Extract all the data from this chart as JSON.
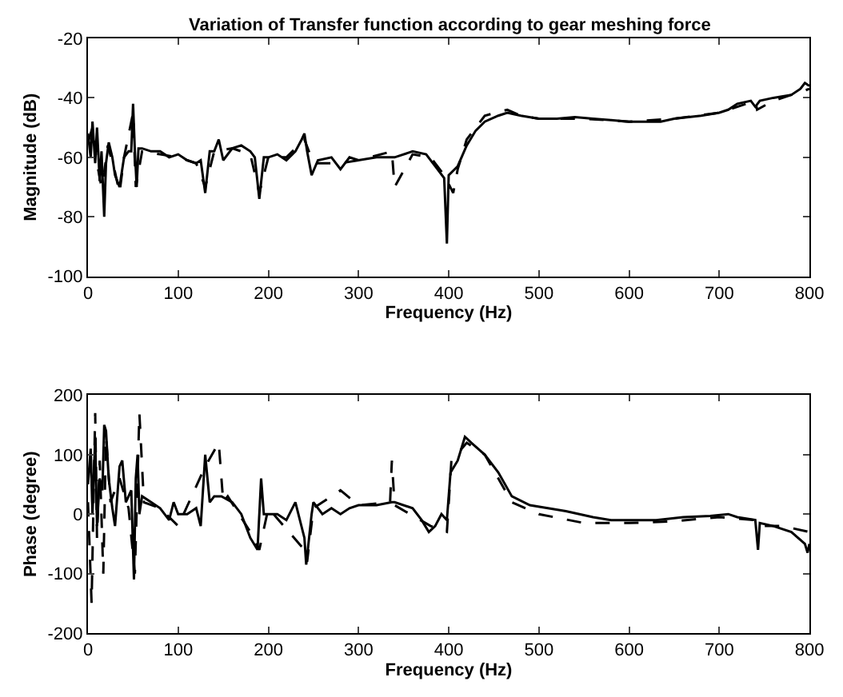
{
  "chart_data": [
    {
      "type": "line",
      "title": "Variation of Transfer function according to gear meshing force",
      "xlabel": "Frequency (Hz)",
      "ylabel": "Magnitude (dB)",
      "xlim": [
        0,
        800
      ],
      "xticks": [
        0,
        100,
        200,
        300,
        400,
        500,
        600,
        700,
        800
      ],
      "ylim": [
        -100,
        -20
      ],
      "yticks": [
        -100,
        -80,
        -60,
        -40,
        -20
      ],
      "series": [
        {
          "color": "#000000",
          "line_style": "solid",
          "x": [
            0,
            3,
            5,
            8,
            10,
            13,
            15,
            18,
            20,
            23,
            27,
            30,
            35,
            40,
            45,
            48,
            50,
            52,
            54,
            56,
            60,
            70,
            80,
            90,
            100,
            110,
            120,
            125,
            130,
            135,
            140,
            145,
            150,
            160,
            170,
            180,
            185,
            190,
            195,
            200,
            210,
            220,
            230,
            237,
            240,
            243,
            248,
            255,
            270,
            280,
            290,
            300,
            320,
            340,
            360,
            375,
            385,
            395,
            398,
            400,
            410,
            420,
            430,
            440,
            455,
            465,
            480,
            500,
            520,
            540,
            560,
            580,
            600,
            620,
            635,
            650,
            680,
            700,
            710,
            720,
            735,
            740,
            745,
            760,
            780,
            790,
            795,
            800
          ],
          "values": [
            -52,
            -60,
            -48,
            -62,
            -50,
            -68,
            -58,
            -80,
            -62,
            -55,
            -60,
            -66,
            -70,
            -60,
            -58,
            -58,
            -42,
            -58,
            -70,
            -57,
            -57,
            -58,
            -58,
            -60,
            -59,
            -61,
            -62,
            -61,
            -72,
            -58,
            -58,
            -54,
            -61,
            -57,
            -56,
            -58,
            -60,
            -74,
            -60,
            -60,
            -59,
            -61,
            -58,
            -54,
            -52,
            -58,
            -66,
            -61,
            -60,
            -64,
            -60,
            -61,
            -60,
            -60,
            -58,
            -59,
            -63,
            -67,
            -89,
            -66,
            -63,
            -56,
            -51,
            -48,
            -46,
            -45,
            -46,
            -47,
            -47,
            -46.5,
            -47,
            -47.5,
            -48,
            -48,
            -48,
            -47,
            -46,
            -45,
            -44,
            -42,
            -41,
            -43,
            -41,
            -40,
            -39,
            -37,
            -35,
            -36
          ]
        },
        {
          "color": "#000000",
          "line_style": "dashed",
          "x": [
            0,
            5,
            10,
            15,
            18,
            22,
            30,
            35,
            40,
            50,
            53,
            60,
            80,
            100,
            120,
            130,
            140,
            160,
            180,
            190,
            200,
            220,
            240,
            250,
            280,
            300,
            337,
            340,
            360,
            380,
            395,
            405,
            410,
            420,
            440,
            465,
            480,
            500,
            550,
            600,
            650,
            700,
            740,
            742,
            760,
            790,
            800
          ],
          "values": [
            -55,
            -50,
            -62,
            -70,
            -65,
            -56,
            -65,
            -72,
            -60,
            -45,
            -70,
            -58,
            -59,
            -60,
            -62,
            -70,
            -58,
            -57,
            -59,
            -72,
            -60,
            -60,
            -54,
            -62,
            -62,
            -61,
            -58,
            -70,
            -59,
            -60,
            -66,
            -72,
            -64,
            -54,
            -46,
            -44,
            -46,
            -47,
            -47,
            -48,
            -47,
            -45,
            -41,
            -44,
            -41,
            -38,
            -37
          ]
        }
      ]
    },
    {
      "type": "line",
      "xlabel": "Frequency (Hz)",
      "ylabel": "Phase (degree)",
      "xlim": [
        0,
        800
      ],
      "xticks": [
        0,
        100,
        200,
        300,
        400,
        500,
        600,
        700,
        800
      ],
      "ylim": [
        -200,
        200
      ],
      "yticks": [
        -200,
        -100,
        0,
        100,
        200
      ],
      "series": [
        {
          "color": "#000000",
          "line_style": "solid",
          "x": [
            0,
            3,
            5,
            8,
            10,
            13,
            16,
            18,
            20,
            23,
            27,
            30,
            35,
            38,
            42,
            48,
            51,
            53,
            55,
            57,
            60,
            70,
            80,
            90,
            95,
            100,
            110,
            120,
            125,
            130,
            135,
            140,
            148,
            160,
            170,
            180,
            188,
            192,
            195,
            210,
            220,
            230,
            240,
            242,
            248,
            250,
            260,
            270,
            280,
            290,
            300,
            320,
            337,
            340,
            360,
            370,
            378,
            385,
            392,
            398,
            402,
            410,
            418,
            425,
            440,
            455,
            470,
            490,
            510,
            530,
            560,
            580,
            600,
            630,
            660,
            690,
            710,
            720,
            740,
            743,
            745,
            760,
            780,
            795,
            798,
            800
          ],
          "values": [
            50,
            110,
            0,
            130,
            -20,
            60,
            40,
            150,
            140,
            60,
            10,
            -20,
            80,
            90,
            20,
            40,
            -110,
            60,
            100,
            0,
            30,
            20,
            10,
            -10,
            20,
            0,
            0,
            10,
            -20,
            100,
            20,
            30,
            30,
            20,
            0,
            -40,
            -60,
            60,
            0,
            0,
            -10,
            20,
            -40,
            -85,
            0,
            20,
            0,
            10,
            0,
            10,
            15,
            15,
            20,
            20,
            10,
            -10,
            -30,
            -20,
            0,
            -10,
            70,
            90,
            130,
            120,
            100,
            70,
            30,
            15,
            10,
            5,
            -5,
            -10,
            -10,
            -10,
            -5,
            -3,
            0,
            -5,
            -10,
            -60,
            -15,
            -20,
            -30,
            -50,
            -65,
            -50
          ]
        },
        {
          "color": "#000000",
          "line_style": "dashed",
          "x": [
            0,
            4,
            8,
            10,
            13,
            17,
            20,
            25,
            35,
            45,
            52,
            57,
            62,
            80,
            100,
            130,
            145,
            150,
            155,
            180,
            190,
            200,
            240,
            243,
            250,
            280,
            300,
            335,
            337,
            340,
            380,
            398,
            403,
            420,
            440,
            470,
            500,
            550,
            600,
            650,
            700,
            740,
            745,
            770,
            800
          ],
          "values": [
            20,
            -150,
            170,
            -40,
            90,
            -100,
            130,
            20,
            60,
            10,
            -100,
            170,
            20,
            10,
            -20,
            80,
            120,
            20,
            30,
            -30,
            -60,
            10,
            -60,
            -80,
            10,
            40,
            15,
            20,
            90,
            15,
            -20,
            -30,
            90,
            120,
            100,
            20,
            0,
            -15,
            -15,
            -12,
            -5,
            -10,
            -20,
            -20,
            -30
          ]
        }
      ]
    }
  ]
}
